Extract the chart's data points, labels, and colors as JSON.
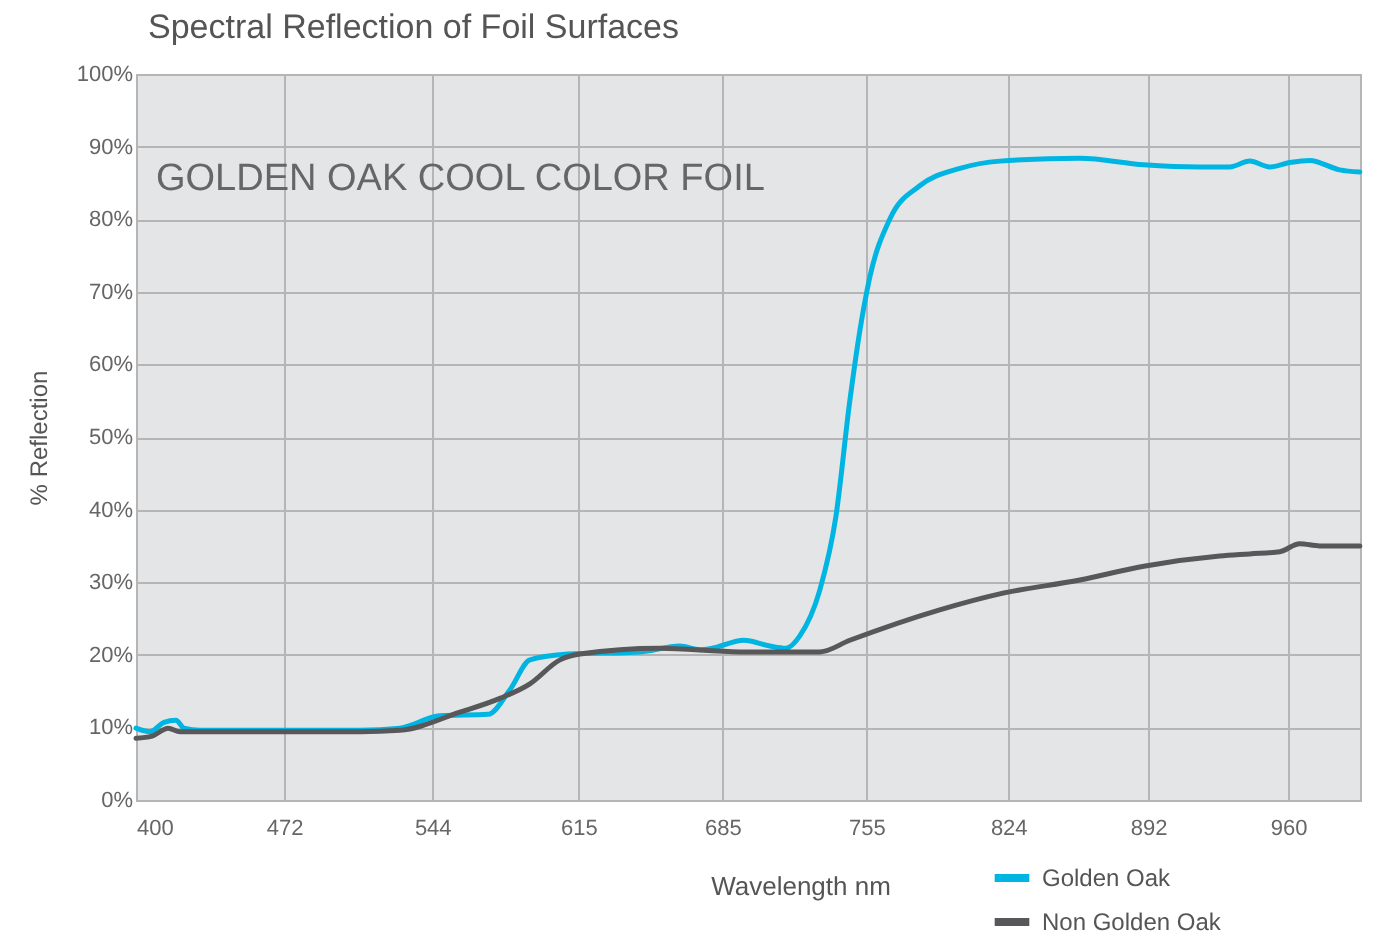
{
  "chart_data": {
    "type": "line",
    "title": "Spectral Reflection of Foil Surfaces",
    "xlabel": "Wavelength nm",
    "ylabel": "% Reflection",
    "annotations": [
      "GOLDEN OAK COOL COLOR FOIL"
    ],
    "series": [
      {
        "name": "Golden Oak",
        "color": "#00b5e2",
        "x": [
          400,
          406.8,
          413.6,
          419.4,
          423.3,
          431.1,
          470,
          508.9,
          528.3,
          547.7,
          571.1,
          581.8,
          591.5,
          610,
          645,
          664.4,
          674.1,
          680,
          695.5,
          708.1,
          715.9,
          722.7,
          732.4,
          740.2,
          747,
          751.9,
          756.7,
          766.4,
          781,
          800.5,
          819.9,
          858.8,
          889.9,
          917.1,
          931.7,
          941.4,
          951.1,
          960.8,
          970.6,
          985.1,
          994.9
        ],
        "values": [
          9.9,
          9.4,
          10.7,
          11,
          9.9,
          9.6,
          9.6,
          9.6,
          9.9,
          11.6,
          11.8,
          15.2,
          19.3,
          20.1,
          20.4,
          21.2,
          20.7,
          20.9,
          22,
          21.2,
          20.9,
          22.6,
          28.9,
          39,
          55,
          64.7,
          72,
          80,
          84.6,
          87,
          88,
          88.4,
          87.5,
          87.2,
          87.2,
          88,
          87.2,
          87.8,
          88.1,
          86.8,
          86.5
        ]
      },
      {
        "name": "Non Golden Oak",
        "color": "#58585a",
        "x": [
          400,
          407.8,
          415.6,
          421.4,
          431.1,
          470,
          508.9,
          528.3,
          557.5,
          576.9,
          591.5,
          606.1,
          615.8,
          654.7,
          693.5,
          722.7,
          732.4,
          747,
          790.7,
          819.9,
          858.8,
          889.9,
          926.8,
          941.4,
          956,
          965.7,
          975.4,
          994.9
        ],
        "values": [
          8.5,
          8.8,
          9.9,
          9.4,
          9.4,
          9.4,
          9.4,
          9.6,
          12.1,
          14,
          16,
          19.3,
          20.1,
          20.9,
          20.4,
          20.4,
          20.4,
          22,
          26.2,
          28.4,
          30.3,
          32.2,
          33.6,
          33.9,
          34.2,
          35.3,
          35,
          35
        ]
      }
    ],
    "xlim": [
      400,
      995
    ],
    "xticks": [
      400,
      472,
      544,
      615,
      685,
      755,
      824,
      892,
      960
    ],
    "ylim": [
      0,
      100
    ],
    "yticks": [
      {
        "value": 0,
        "label": "0%"
      },
      {
        "value": 10,
        "label": "10%"
      },
      {
        "value": 20,
        "label": "20%"
      },
      {
        "value": 30,
        "label": "30%"
      },
      {
        "value": 40,
        "label": "40%"
      },
      {
        "value": 50,
        "label": "50%"
      },
      {
        "value": 60,
        "label": "60%"
      },
      {
        "value": 70,
        "label": "70%"
      },
      {
        "value": 80,
        "label": "80%"
      },
      {
        "value": 90,
        "label": "90%"
      },
      {
        "value": 100,
        "label": "100%"
      }
    ],
    "grid": true,
    "legend": "bottom right",
    "marker": "none",
    "line_style": "solid"
  }
}
